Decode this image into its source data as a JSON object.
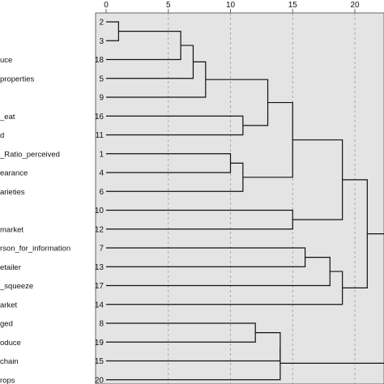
{
  "chart_data": {
    "type": "dendrogram",
    "xlabel": "",
    "ylabel": "",
    "x_ticks": [
      0,
      5,
      10,
      15,
      20
    ],
    "xlim": [
      0,
      25
    ],
    "grid": true,
    "leaves": [
      {
        "id": "2",
        "label": ""
      },
      {
        "id": "3",
        "label": ""
      },
      {
        "id": "18",
        "label": "uce"
      },
      {
        "id": "5",
        "label": "properties"
      },
      {
        "id": "9",
        "label": ""
      },
      {
        "id": "16",
        "label": "_eat"
      },
      {
        "id": "11",
        "label": "d"
      },
      {
        "id": "1",
        "label": "_Ratio_perceived"
      },
      {
        "id": "4",
        "label": "earance"
      },
      {
        "id": "6",
        "label": "arieties"
      },
      {
        "id": "10",
        "label": ""
      },
      {
        "id": "12",
        "label": "market"
      },
      {
        "id": "7",
        "label": "rson_for_information"
      },
      {
        "id": "13",
        "label": "etailer"
      },
      {
        "id": "17",
        "label": "_squeeze"
      },
      {
        "id": "14",
        "label": "arket"
      },
      {
        "id": "8",
        "label": "ged"
      },
      {
        "id": "19",
        "label": "oduce"
      },
      {
        "id": "15",
        "label": "chain"
      },
      {
        "id": "20",
        "label": "rops"
      }
    ],
    "merges": [
      {
        "id": "A",
        "left": "2",
        "right": "3",
        "height": 1
      },
      {
        "id": "B",
        "left": "A",
        "right": "18",
        "height": 6
      },
      {
        "id": "C",
        "left": "B",
        "right": "5",
        "height": 7
      },
      {
        "id": "D",
        "left": "C",
        "right": "9",
        "height": 8
      },
      {
        "id": "E",
        "left": "1",
        "right": "4",
        "height": 10
      },
      {
        "id": "F",
        "left": "E",
        "right": "6",
        "height": 11
      },
      {
        "id": "G",
        "left": "16",
        "right": "11",
        "height": 11
      },
      {
        "id": "H",
        "left": "D",
        "right": "G",
        "height": 13
      },
      {
        "id": "I",
        "left": "H",
        "right": "F",
        "height": 15
      },
      {
        "id": "J",
        "left": "10",
        "right": "12",
        "height": 15
      },
      {
        "id": "K",
        "left": "7",
        "right": "13",
        "height": 16
      },
      {
        "id": "L",
        "left": "K",
        "right": "17",
        "height": 18
      },
      {
        "id": "M",
        "left": "L",
        "right": "14",
        "height": 19
      },
      {
        "id": "N",
        "left": "I",
        "right": "J",
        "height": 19
      },
      {
        "id": "O",
        "left": "N",
        "right": "M",
        "height": 21
      },
      {
        "id": "P",
        "left": "8",
        "right": "19",
        "height": 12
      },
      {
        "id": "Q",
        "left": "P",
        "right": "15",
        "height": 14
      },
      {
        "id": "R",
        "left": "Q",
        "right": "20",
        "height": 14
      },
      {
        "id": "S",
        "left": "O",
        "right": "R",
        "height": 23
      }
    ]
  },
  "colors": {
    "plot_bg": "#e4e4e4",
    "grid": "#9a9a9a",
    "line": "#111111",
    "frame": "#666666"
  }
}
